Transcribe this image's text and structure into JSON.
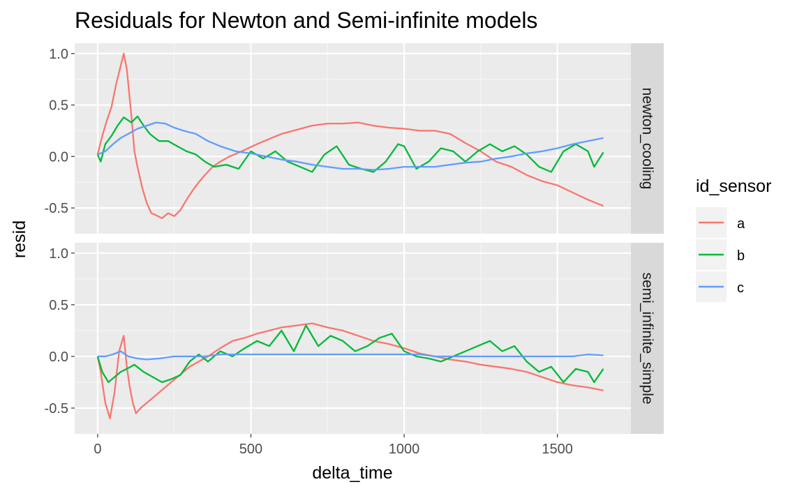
{
  "chart_data": {
    "type": "line",
    "title": "Residuals for Newton and Semi-infinite models",
    "xlabel": "delta_time",
    "ylabel": "resid",
    "xlim": [
      -75,
      1740
    ],
    "ylim": [
      -0.75,
      1.1
    ],
    "x_ticks": [
      0,
      500,
      1000,
      1500
    ],
    "x_tick_labels": [
      "0",
      "500",
      "1000",
      "1500"
    ],
    "y_ticks": [
      -0.5,
      0.0,
      0.5,
      1.0
    ],
    "y_tick_labels": [
      "-0.5",
      "0.0",
      "0.5",
      "1.0"
    ],
    "grid": true,
    "legend": {
      "title": "id_sensor",
      "position": "right",
      "entries": [
        {
          "label": "a",
          "color": "#F8766D"
        },
        {
          "label": "b",
          "color": "#00BA38"
        },
        {
          "label": "c",
          "color": "#619CFF"
        }
      ]
    },
    "facets": [
      {
        "label": "newton_cooling",
        "series": [
          {
            "name": "a",
            "color": "#F8766D",
            "x": [
              0,
              15,
              30,
              45,
              60,
              75,
              85,
              95,
              110,
              120,
              130,
              145,
              160,
              175,
              190,
              210,
              230,
              250,
              270,
              290,
              310,
              330,
              350,
              375,
              400,
              430,
              470,
              520,
              560,
              600,
              650,
              700,
              750,
              800,
              850,
              900,
              950,
              1000,
              1050,
              1100,
              1150,
              1200,
              1250,
              1300,
              1350,
              1400,
              1450,
              1500,
              1550,
              1600,
              1650
            ],
            "y": [
              0.02,
              0.2,
              0.35,
              0.48,
              0.7,
              0.88,
              1.0,
              0.85,
              0.4,
              0.05,
              -0.1,
              -0.3,
              -0.45,
              -0.55,
              -0.57,
              -0.6,
              -0.55,
              -0.58,
              -0.52,
              -0.42,
              -0.33,
              -0.25,
              -0.18,
              -0.1,
              -0.05,
              0.0,
              0.05,
              0.12,
              0.17,
              0.22,
              0.26,
              0.3,
              0.32,
              0.32,
              0.33,
              0.3,
              0.28,
              0.27,
              0.25,
              0.25,
              0.22,
              0.13,
              0.05,
              -0.05,
              -0.1,
              -0.18,
              -0.24,
              -0.28,
              -0.35,
              -0.42,
              -0.48
            ]
          },
          {
            "name": "b",
            "color": "#00BA38",
            "x": [
              0,
              10,
              25,
              45,
              65,
              85,
              110,
              130,
              150,
              170,
              200,
              230,
              260,
              290,
              320,
              350,
              380,
              420,
              460,
              500,
              540,
              580,
              620,
              660,
              700,
              740,
              780,
              820,
              860,
              900,
              940,
              980,
              1000,
              1040,
              1080,
              1120,
              1160,
              1200,
              1240,
              1280,
              1320,
              1360,
              1400,
              1440,
              1480,
              1520,
              1560,
              1600,
              1620,
              1650
            ],
            "y": [
              0.02,
              -0.05,
              0.12,
              0.2,
              0.3,
              0.38,
              0.33,
              0.39,
              0.3,
              0.22,
              0.15,
              0.15,
              0.1,
              0.05,
              0.02,
              -0.05,
              -0.1,
              -0.08,
              -0.12,
              0.05,
              -0.02,
              0.05,
              -0.05,
              -0.1,
              -0.15,
              0.02,
              0.1,
              -0.08,
              -0.12,
              -0.15,
              -0.05,
              0.12,
              0.1,
              -0.12,
              -0.05,
              0.08,
              0.05,
              -0.05,
              0.05,
              0.12,
              0.05,
              0.1,
              0.02,
              -0.1,
              -0.15,
              0.05,
              0.12,
              0.05,
              -0.1,
              0.04
            ]
          },
          {
            "name": "c",
            "color": "#619CFF",
            "x": [
              0,
              25,
              50,
              75,
              100,
              130,
              160,
              190,
              220,
              250,
              280,
              320,
              360,
              400,
              450,
              500,
              550,
              600,
              650,
              700,
              750,
              800,
              850,
              900,
              950,
              1000,
              1050,
              1100,
              1150,
              1200,
              1250,
              1300,
              1350,
              1400,
              1450,
              1500,
              1550,
              1600,
              1650
            ],
            "y": [
              0.02,
              0.05,
              0.12,
              0.18,
              0.22,
              0.27,
              0.3,
              0.33,
              0.32,
              0.28,
              0.25,
              0.22,
              0.15,
              0.1,
              0.05,
              0.03,
              0.0,
              -0.03,
              -0.05,
              -0.08,
              -0.1,
              -0.12,
              -0.12,
              -0.13,
              -0.12,
              -0.1,
              -0.1,
              -0.1,
              -0.08,
              -0.06,
              -0.05,
              -0.02,
              0.0,
              0.03,
              0.05,
              0.08,
              0.12,
              0.15,
              0.18
            ]
          }
        ]
      },
      {
        "label": "semi_infinite_simple",
        "series": [
          {
            "name": "a",
            "color": "#F8766D",
            "x": [
              0,
              10,
              25,
              40,
              55,
              70,
              85,
              95,
              105,
              115,
              125,
              140,
              160,
              180,
              200,
              220,
              240,
              260,
              280,
              300,
              330,
              360,
              400,
              440,
              480,
              520,
              560,
              600,
              650,
              700,
              750,
              800,
              850,
              900,
              950,
              1000,
              1050,
              1100,
              1150,
              1200,
              1250,
              1300,
              1350,
              1400,
              1450,
              1500,
              1550,
              1600,
              1650
            ],
            "y": [
              0.0,
              -0.15,
              -0.45,
              -0.6,
              -0.35,
              0.05,
              0.2,
              -0.1,
              -0.3,
              -0.45,
              -0.55,
              -0.5,
              -0.45,
              -0.4,
              -0.35,
              -0.3,
              -0.25,
              -0.2,
              -0.15,
              -0.1,
              -0.05,
              0.0,
              0.08,
              0.15,
              0.18,
              0.22,
              0.25,
              0.28,
              0.3,
              0.32,
              0.28,
              0.25,
              0.2,
              0.15,
              0.12,
              0.08,
              0.03,
              0.0,
              -0.03,
              -0.05,
              -0.08,
              -0.1,
              -0.12,
              -0.15,
              -0.2,
              -0.25,
              -0.28,
              -0.3,
              -0.33
            ]
          },
          {
            "name": "b",
            "color": "#00BA38",
            "x": [
              0,
              15,
              35,
              55,
              75,
              95,
              120,
              150,
              180,
              210,
              240,
              270,
              300,
              330,
              360,
              400,
              440,
              480,
              520,
              560,
              600,
              640,
              680,
              720,
              760,
              800,
              840,
              880,
              920,
              960,
              1000,
              1040,
              1080,
              1120,
              1160,
              1200,
              1240,
              1280,
              1320,
              1360,
              1400,
              1440,
              1480,
              1520,
              1560,
              1600,
              1620,
              1650
            ],
            "y": [
              0.0,
              -0.15,
              -0.25,
              -0.2,
              -0.15,
              -0.12,
              -0.08,
              -0.15,
              -0.2,
              -0.25,
              -0.22,
              -0.18,
              -0.05,
              0.02,
              -0.05,
              0.05,
              0.0,
              0.08,
              0.15,
              0.1,
              0.25,
              0.05,
              0.3,
              0.1,
              0.2,
              0.15,
              0.05,
              0.1,
              0.18,
              0.22,
              0.05,
              0.0,
              -0.02,
              -0.05,
              0.0,
              0.05,
              0.1,
              0.15,
              0.05,
              0.1,
              -0.05,
              -0.15,
              -0.1,
              -0.25,
              -0.12,
              -0.15,
              -0.25,
              -0.12
            ]
          },
          {
            "name": "c",
            "color": "#619CFF",
            "x": [
              0,
              25,
              50,
              75,
              100,
              130,
              160,
              200,
              250,
              300,
              350,
              400,
              450,
              500,
              550,
              600,
              650,
              700,
              750,
              800,
              850,
              900,
              950,
              1000,
              1050,
              1100,
              1150,
              1200,
              1250,
              1300,
              1350,
              1400,
              1450,
              1500,
              1550,
              1600,
              1650
            ],
            "y": [
              0.0,
              0.0,
              0.02,
              0.05,
              0.0,
              -0.02,
              -0.03,
              -0.02,
              0.0,
              0.0,
              0.0,
              0.02,
              0.02,
              0.02,
              0.02,
              0.02,
              0.02,
              0.02,
              0.02,
              0.02,
              0.02,
              0.02,
              0.02,
              0.02,
              0.02,
              0.0,
              0.0,
              0.0,
              0.0,
              0.0,
              0.0,
              0.0,
              0.0,
              0.0,
              0.0,
              0.02,
              0.01
            ]
          }
        ]
      }
    ]
  }
}
